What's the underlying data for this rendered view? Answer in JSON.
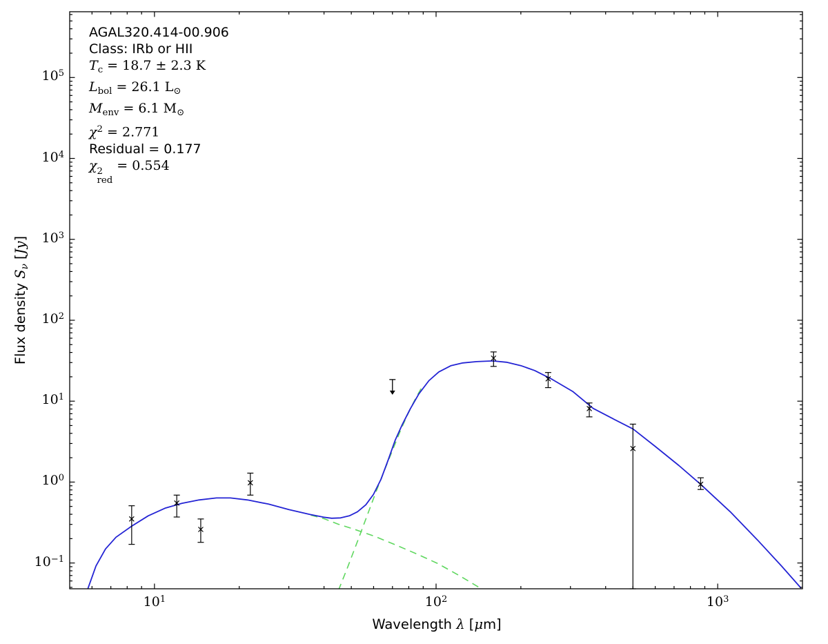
{
  "figure": {
    "background": "#ffffff",
    "frame_color": "#000000"
  },
  "annotation": {
    "source_name": "AGAL320.414-00.906",
    "class": "IRb or HII",
    "T_c": "18.7 ± 2.3 K",
    "L_bol": "26.1 L☉",
    "M_env": "6.1 M☉",
    "chi2": "2.771",
    "residual": "0.177",
    "chi2_red": "0.554",
    "lines": [
      [
        {
          "t": "AGAL320.414-00.906",
          "s": "sf"
        }
      ],
      [
        {
          "t": "Class: IRb or HII",
          "s": "sf"
        }
      ],
      [
        {
          "t": "T",
          "s": "it"
        },
        {
          "t": "c",
          "s": "sub"
        },
        {
          "t": " = 18.7 ± 2.3 K",
          "s": "rm"
        }
      ],
      [
        {
          "t": "L",
          "s": "it"
        },
        {
          "t": "bol",
          "s": "sub"
        },
        {
          "t": " = 26.1 L",
          "s": "rm"
        },
        {
          "t": "⊙",
          "s": "sub"
        }
      ],
      [
        {
          "t": "M",
          "s": "it"
        },
        {
          "t": "env",
          "s": "sub"
        },
        {
          "t": " = 6.1 M",
          "s": "rm"
        },
        {
          "t": "⊙",
          "s": "sub"
        }
      ],
      [
        {
          "t": "χ",
          "s": "it"
        },
        {
          "t": "2",
          "s": "sup"
        },
        {
          "t": " = 2.771",
          "s": "rm"
        }
      ],
      [
        {
          "t": "Residual = 0.177",
          "s": "sf"
        }
      ],
      [
        {
          "t": "χ",
          "s": "it"
        },
        {
          "t": "2|red",
          "s": "stack"
        },
        {
          "t": " = 0.554",
          "s": "rm"
        }
      ]
    ]
  },
  "chart_data": {
    "type": "scatter",
    "description": "Spectral energy distribution with two-component greybody fit",
    "axes": {
      "xlabel": "Wavelength λ [μm]",
      "ylabel": "Flux density Sν [Jy]",
      "xscale": "log",
      "yscale": "log",
      "xlim": [
        5,
        2000
      ],
      "ylim": [
        0.048,
        650000
      ],
      "grid": false,
      "xlabel_segments": [
        {
          "t": "Wavelength ",
          "s": "sf"
        },
        {
          "t": "λ",
          "s": "it"
        },
        {
          "t": " [",
          "s": "sf"
        },
        {
          "t": "μ",
          "s": "it"
        },
        {
          "t": "m]",
          "s": "sf"
        }
      ],
      "ylabel_segments": [
        {
          "t": "Flux density ",
          "s": "sf"
        },
        {
          "t": "S",
          "s": "it"
        },
        {
          "t": "ν",
          "s": "subit"
        },
        {
          "t": " [",
          "s": "sf"
        },
        {
          "t": "Jy",
          "s": "it"
        },
        {
          "t": "]",
          "s": "sf"
        }
      ],
      "xticks": [
        {
          "value": 10,
          "exp": "1"
        },
        {
          "value": 100,
          "exp": "2"
        },
        {
          "value": 1000,
          "exp": "3"
        }
      ],
      "yticks": [
        {
          "value": 0.1,
          "exp": "−1"
        },
        {
          "value": 1,
          "exp": "0"
        },
        {
          "value": 10,
          "exp": "1"
        },
        {
          "value": 100,
          "exp": "2"
        },
        {
          "value": 1000,
          "exp": "3"
        },
        {
          "value": 10000,
          "exp": "4"
        },
        {
          "value": 100000,
          "exp": "5"
        }
      ]
    },
    "points": [
      {
        "lambda_um": 8.3,
        "flux_jy": 0.35,
        "err_hi": 0.51,
        "err_lo": 0.17
      },
      {
        "lambda_um": 12.0,
        "flux_jy": 0.55,
        "err_hi": 0.69,
        "err_lo": 0.37
      },
      {
        "lambda_um": 14.6,
        "flux_jy": 0.26,
        "err_hi": 0.35,
        "err_lo": 0.18
      },
      {
        "lambda_um": 21.9,
        "flux_jy": 0.98,
        "err_hi": 1.29,
        "err_lo": 0.69
      },
      {
        "lambda_um": 160,
        "flux_jy": 34.0,
        "err_hi": 40.6,
        "err_lo": 26.9
      },
      {
        "lambda_um": 250,
        "flux_jy": 18.9,
        "err_hi": 22.6,
        "err_lo": 14.7
      },
      {
        "lambda_um": 350,
        "flux_jy": 8.1,
        "err_hi": 9.5,
        "err_lo": 6.4
      },
      {
        "lambda_um": 500,
        "flux_jy": 2.6,
        "err_hi": 5.2,
        "err_lo": 0.048
      },
      {
        "lambda_um": 870,
        "flux_jy": 0.94,
        "err_hi": 1.13,
        "err_lo": 0.81
      }
    ],
    "upper_limit_point": {
      "lambda_um": 70,
      "flux_jy": 18.5,
      "arrow_to": 13.5,
      "direction": "down"
    },
    "model_total": [
      [
        5.8,
        0.048
      ],
      [
        6.2,
        0.092
      ],
      [
        6.7,
        0.149
      ],
      [
        7.3,
        0.208
      ],
      [
        8.3,
        0.285
      ],
      [
        9.5,
        0.383
      ],
      [
        10.9,
        0.475
      ],
      [
        12.5,
        0.545
      ],
      [
        14.4,
        0.601
      ],
      [
        16.6,
        0.637
      ],
      [
        18.6,
        0.637
      ],
      [
        21.4,
        0.601
      ],
      [
        25.4,
        0.534
      ],
      [
        30,
        0.457
      ],
      [
        35.6,
        0.398
      ],
      [
        39.9,
        0.368
      ],
      [
        42.6,
        0.357
      ],
      [
        45.8,
        0.361
      ],
      [
        49.2,
        0.383
      ],
      [
        52.6,
        0.43
      ],
      [
        56.3,
        0.524
      ],
      [
        59.9,
        0.703
      ],
      [
        63.7,
        1.08
      ],
      [
        67.7,
        1.91
      ],
      [
        71.6,
        3.3
      ],
      [
        75.7,
        5.08
      ],
      [
        80.9,
        7.98
      ],
      [
        86.9,
        12.3
      ],
      [
        94.3,
        17.9
      ],
      [
        102.3,
        23.0
      ],
      [
        113,
        27.5
      ],
      [
        124.4,
        29.7
      ],
      [
        139.3,
        30.8
      ],
      [
        158.9,
        31.4
      ],
      [
        177.9,
        30.3
      ],
      [
        199.9,
        27.5
      ],
      [
        224,
        23.9
      ],
      [
        258.3,
        18.6
      ],
      [
        305.5,
        13.2
      ],
      [
        361.3,
        8.14
      ],
      [
        424.6,
        6.07
      ],
      [
        501,
        4.52
      ],
      [
        599,
        2.77
      ],
      [
        728.6,
        1.6
      ],
      [
        863,
        0.962
      ],
      [
        1107,
        0.431
      ],
      [
        1384,
        0.193
      ],
      [
        1684,
        0.092
      ],
      [
        1977,
        0.049
      ]
    ],
    "model_cold_component": [
      [
        45,
        0.046
      ],
      [
        48.5,
        0.088
      ],
      [
        52.6,
        0.185
      ],
      [
        57.1,
        0.398
      ],
      [
        61.5,
        0.791
      ],
      [
        66,
        1.48
      ],
      [
        70.8,
        2.72
      ],
      [
        74.9,
        4.43
      ],
      [
        79.2,
        6.82
      ],
      [
        83.7,
        10.1
      ],
      [
        88.6,
        14.4
      ]
    ],
    "model_warm_component": [
      [
        35.9,
        0.39
      ],
      [
        39.9,
        0.354
      ],
      [
        44.8,
        0.303
      ],
      [
        51.6,
        0.259
      ],
      [
        60.6,
        0.213
      ],
      [
        71.6,
        0.168
      ],
      [
        85.1,
        0.13
      ],
      [
        101,
        0.099
      ],
      [
        120,
        0.071
      ],
      [
        143.5,
        0.049
      ]
    ],
    "colors": {
      "model_total": "#2323d4",
      "model_components": "#5fd75f",
      "data_points": "#000000"
    },
    "styles": {
      "model_total_line": "solid",
      "model_component_line": "dashed",
      "marker": "x"
    }
  }
}
